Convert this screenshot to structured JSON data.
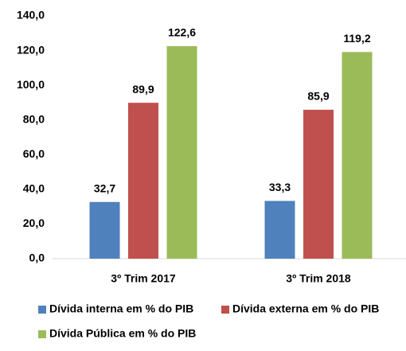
{
  "chart_data": {
    "type": "bar",
    "categories": [
      "3º Trim 2017",
      "3º Trim 2018"
    ],
    "series": [
      {
        "name": "Dívida interna em % do PIB",
        "color": "#4f81bd",
        "values": [
          32.7,
          33.3
        ],
        "value_labels": [
          "32,7",
          "33,3"
        ]
      },
      {
        "name": "Dívida externa em % do PIB",
        "color": "#c0504d",
        "values": [
          89.9,
          85.9
        ],
        "value_labels": [
          "89,9",
          "85,9"
        ]
      },
      {
        "name": "Dívida Pública em % do PIB",
        "color": "#9bbb59",
        "values": [
          122.6,
          119.2
        ],
        "value_labels": [
          "122,6",
          "119,2"
        ]
      }
    ],
    "ylim": [
      0,
      140
    ],
    "yticks": [
      {
        "value": 0,
        "label": "0,0"
      },
      {
        "value": 20,
        "label": "20,0"
      },
      {
        "value": 40,
        "label": "40,0"
      },
      {
        "value": 60,
        "label": "60,0"
      },
      {
        "value": 80,
        "label": "80,0"
      },
      {
        "value": 100,
        "label": "100,0"
      },
      {
        "value": 120,
        "label": "120,0"
      },
      {
        "value": 140,
        "label": "140,0"
      }
    ],
    "grid": false
  }
}
